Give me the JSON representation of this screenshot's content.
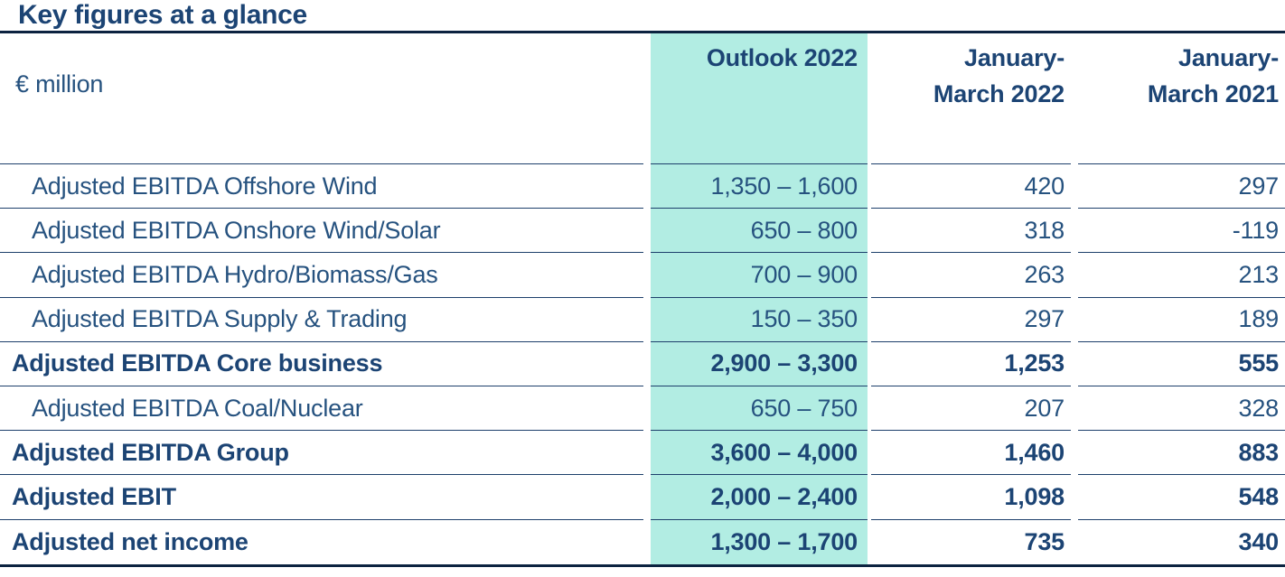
{
  "page": {
    "title": "Key figures at a glance"
  },
  "colors": {
    "text_navy": "#26527f",
    "text_navy_dark": "#1c4474",
    "highlight_teal": "#b2ede3",
    "row_separator": "#1d3f6b",
    "heavy_rule": "#0c2340"
  },
  "table": {
    "unit_label": "€ million",
    "columns": {
      "outlook": {
        "label": "Outlook 2022",
        "highlighted": true
      },
      "jan_mar_2022": {
        "line1": "January-",
        "line2": "March 2022"
      },
      "jan_mar_2021": {
        "line1": "January-",
        "line2": "March 2021"
      }
    },
    "rows": [
      {
        "label": "Adjusted EBITDA Offshore Wind",
        "outlook": "1,350 – 1,600",
        "jan_mar_2022": "420",
        "jan_mar_2021": "297"
      },
      {
        "label": "Adjusted EBITDA Onshore Wind/Solar",
        "outlook": "650 – 800",
        "jan_mar_2022": "318",
        "jan_mar_2021": "-119"
      },
      {
        "label": "Adjusted EBITDA Hydro/Biomass/Gas",
        "outlook": "700 – 900",
        "jan_mar_2022": "263",
        "jan_mar_2021": "213"
      },
      {
        "label": "Adjusted EBITDA Supply & Trading",
        "outlook": "150 – 350",
        "jan_mar_2022": "297",
        "jan_mar_2021": "189"
      },
      {
        "label": "Adjusted EBITDA Core business",
        "outlook": "2,900 – 3,300",
        "jan_mar_2022": "1,253",
        "jan_mar_2021": "555"
      },
      {
        "label": "Adjusted EBITDA Coal/Nuclear",
        "outlook": "650 – 750",
        "jan_mar_2022": "207",
        "jan_mar_2021": "328"
      },
      {
        "label": "Adjusted EBITDA Group",
        "outlook": "3,600 – 4,000",
        "jan_mar_2022": "1,460",
        "jan_mar_2021": "883"
      },
      {
        "label": "Adjusted EBIT",
        "outlook": "2,000 – 2,400",
        "jan_mar_2022": "1,098",
        "jan_mar_2021": "548"
      },
      {
        "label": "Adjusted net income",
        "outlook": "1,300 – 1,700",
        "jan_mar_2022": "735",
        "jan_mar_2021": "340"
      }
    ]
  }
}
